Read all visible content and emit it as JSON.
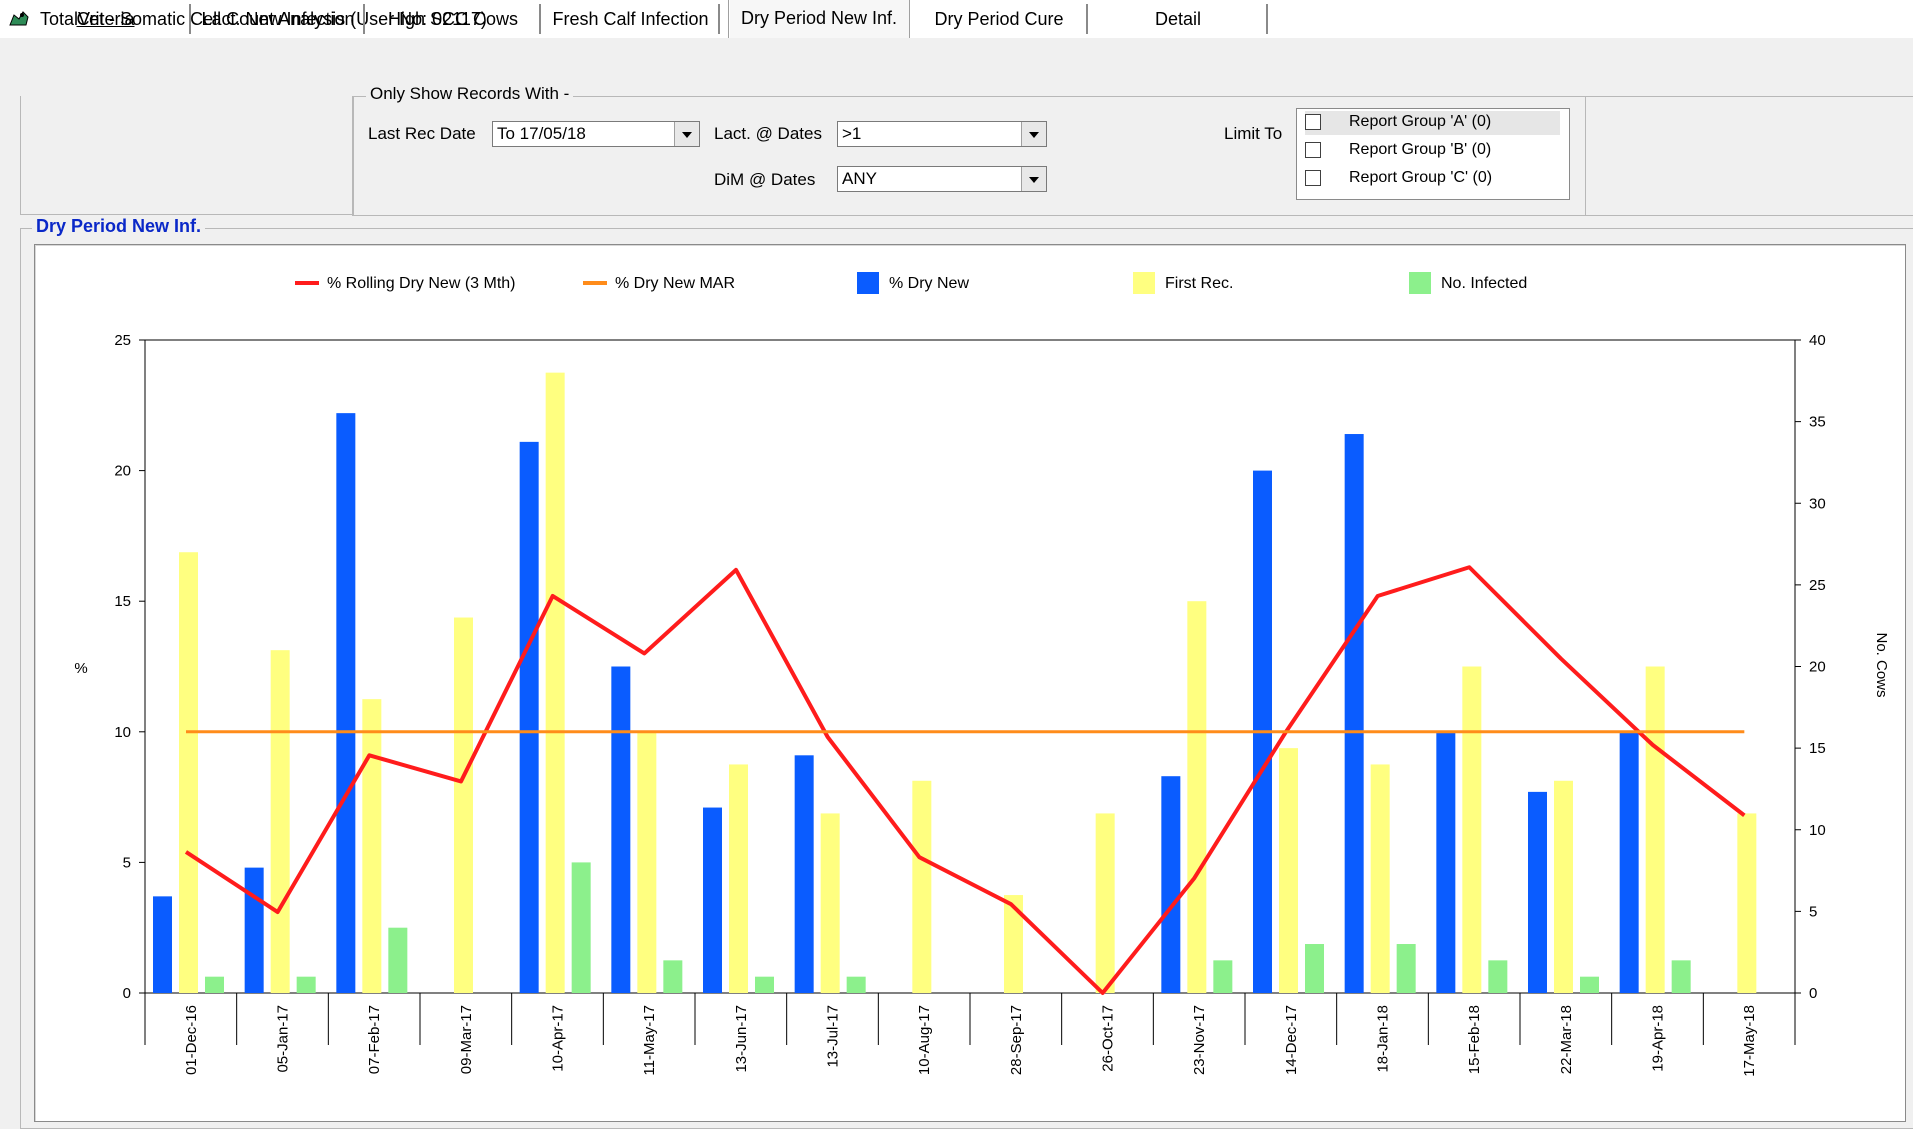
{
  "window": {
    "title": "TotalVet - Somatic Cell Count Analysis (User No: 02117)",
    "icon": "totalvet-app-icon"
  },
  "tabs": [
    {
      "label": "Criteria",
      "active": false
    },
    {
      "label": "Lact. New Infection",
      "active": false
    },
    {
      "label": "High SCC Cows",
      "active": false
    },
    {
      "label": "Fresh Calf Infection",
      "active": false
    },
    {
      "label": "Dry Period New Inf.",
      "active": true
    },
    {
      "label": "Dry Period Cure",
      "active": false
    },
    {
      "label": "Detail",
      "active": false
    }
  ],
  "criteria": {
    "group_title": "Only Show Records With -",
    "last_rec_date_label": "Last Rec Date",
    "last_rec_date_value": "To 17/05/18",
    "lact_label": "Lact. @ Dates",
    "lact_value": ">1",
    "dim_label": "DiM @ Dates",
    "dim_value": "ANY",
    "limit_to_label": "Limit To",
    "report_groups": [
      {
        "label": "Report Group 'A' (0)",
        "checked": false
      },
      {
        "label": "Report Group 'B' (0)",
        "checked": false
      },
      {
        "label": "Report Group 'C' (0)",
        "checked": false
      }
    ]
  },
  "chart_section_title": "Dry Period New Inf.",
  "chart_data": {
    "type": "bar",
    "categories": [
      "01-Dec-16",
      "05-Jan-17",
      "07-Feb-17",
      "09-Mar-17",
      "10-Apr-17",
      "11-May-17",
      "13-Jun-17",
      "13-Jul-17",
      "10-Aug-17",
      "28-Sep-17",
      "26-Oct-17",
      "23-Nov-17",
      "14-Dec-17",
      "18-Jan-18",
      "15-Feb-18",
      "22-Mar-18",
      "19-Apr-18",
      "17-May-18"
    ],
    "left_axis": {
      "label": "%",
      "range": [
        0,
        25
      ],
      "ticks": [
        "0",
        "5",
        "10",
        "15",
        "20",
        "25"
      ]
    },
    "right_axis": {
      "label": "No. Cows",
      "range": [
        0,
        40
      ],
      "ticks": [
        "0",
        "5",
        "10",
        "15",
        "20",
        "25",
        "30",
        "35",
        "40"
      ]
    },
    "legend_position": "top",
    "grid": false,
    "series": [
      {
        "name": "% Rolling Dry New (3 Mth)",
        "kind": "line",
        "axis": "left",
        "color": "#ff1c1c",
        "values": [
          5.4,
          3.1,
          9.1,
          8.1,
          15.2,
          13.0,
          16.2,
          9.8,
          5.2,
          3.4,
          0,
          4.4,
          10.0,
          15.2,
          16.3,
          12.8,
          9.5,
          6.8
        ]
      },
      {
        "name": "% Dry New MAR",
        "kind": "line",
        "axis": "left",
        "color": "#ff8c1a",
        "values": [
          10,
          10,
          10,
          10,
          10,
          10,
          10,
          10,
          10,
          10,
          10,
          10,
          10,
          10,
          10,
          10,
          10,
          10
        ]
      },
      {
        "name": "% Dry New",
        "kind": "bar",
        "axis": "left",
        "color": "#0a5cff",
        "values": [
          3.7,
          4.8,
          22.2,
          0,
          21.1,
          12.5,
          7.1,
          9.1,
          0,
          0,
          0,
          8.3,
          20.0,
          21.4,
          10.0,
          7.7,
          10.0,
          0
        ]
      },
      {
        "name": "First Rec.",
        "kind": "bar",
        "axis": "right",
        "color": "#ffff80",
        "values": [
          27,
          21,
          18,
          23,
          38,
          16,
          14,
          11,
          13,
          6,
          11,
          24,
          15,
          14,
          20,
          13,
          20,
          11
        ]
      },
      {
        "name": "No. Infected",
        "kind": "bar",
        "axis": "right",
        "color": "#8cf08c",
        "values": [
          1,
          1,
          4,
          0,
          8,
          2,
          1,
          1,
          0,
          0,
          0,
          2,
          3,
          3,
          2,
          1,
          2,
          0
        ]
      }
    ]
  }
}
